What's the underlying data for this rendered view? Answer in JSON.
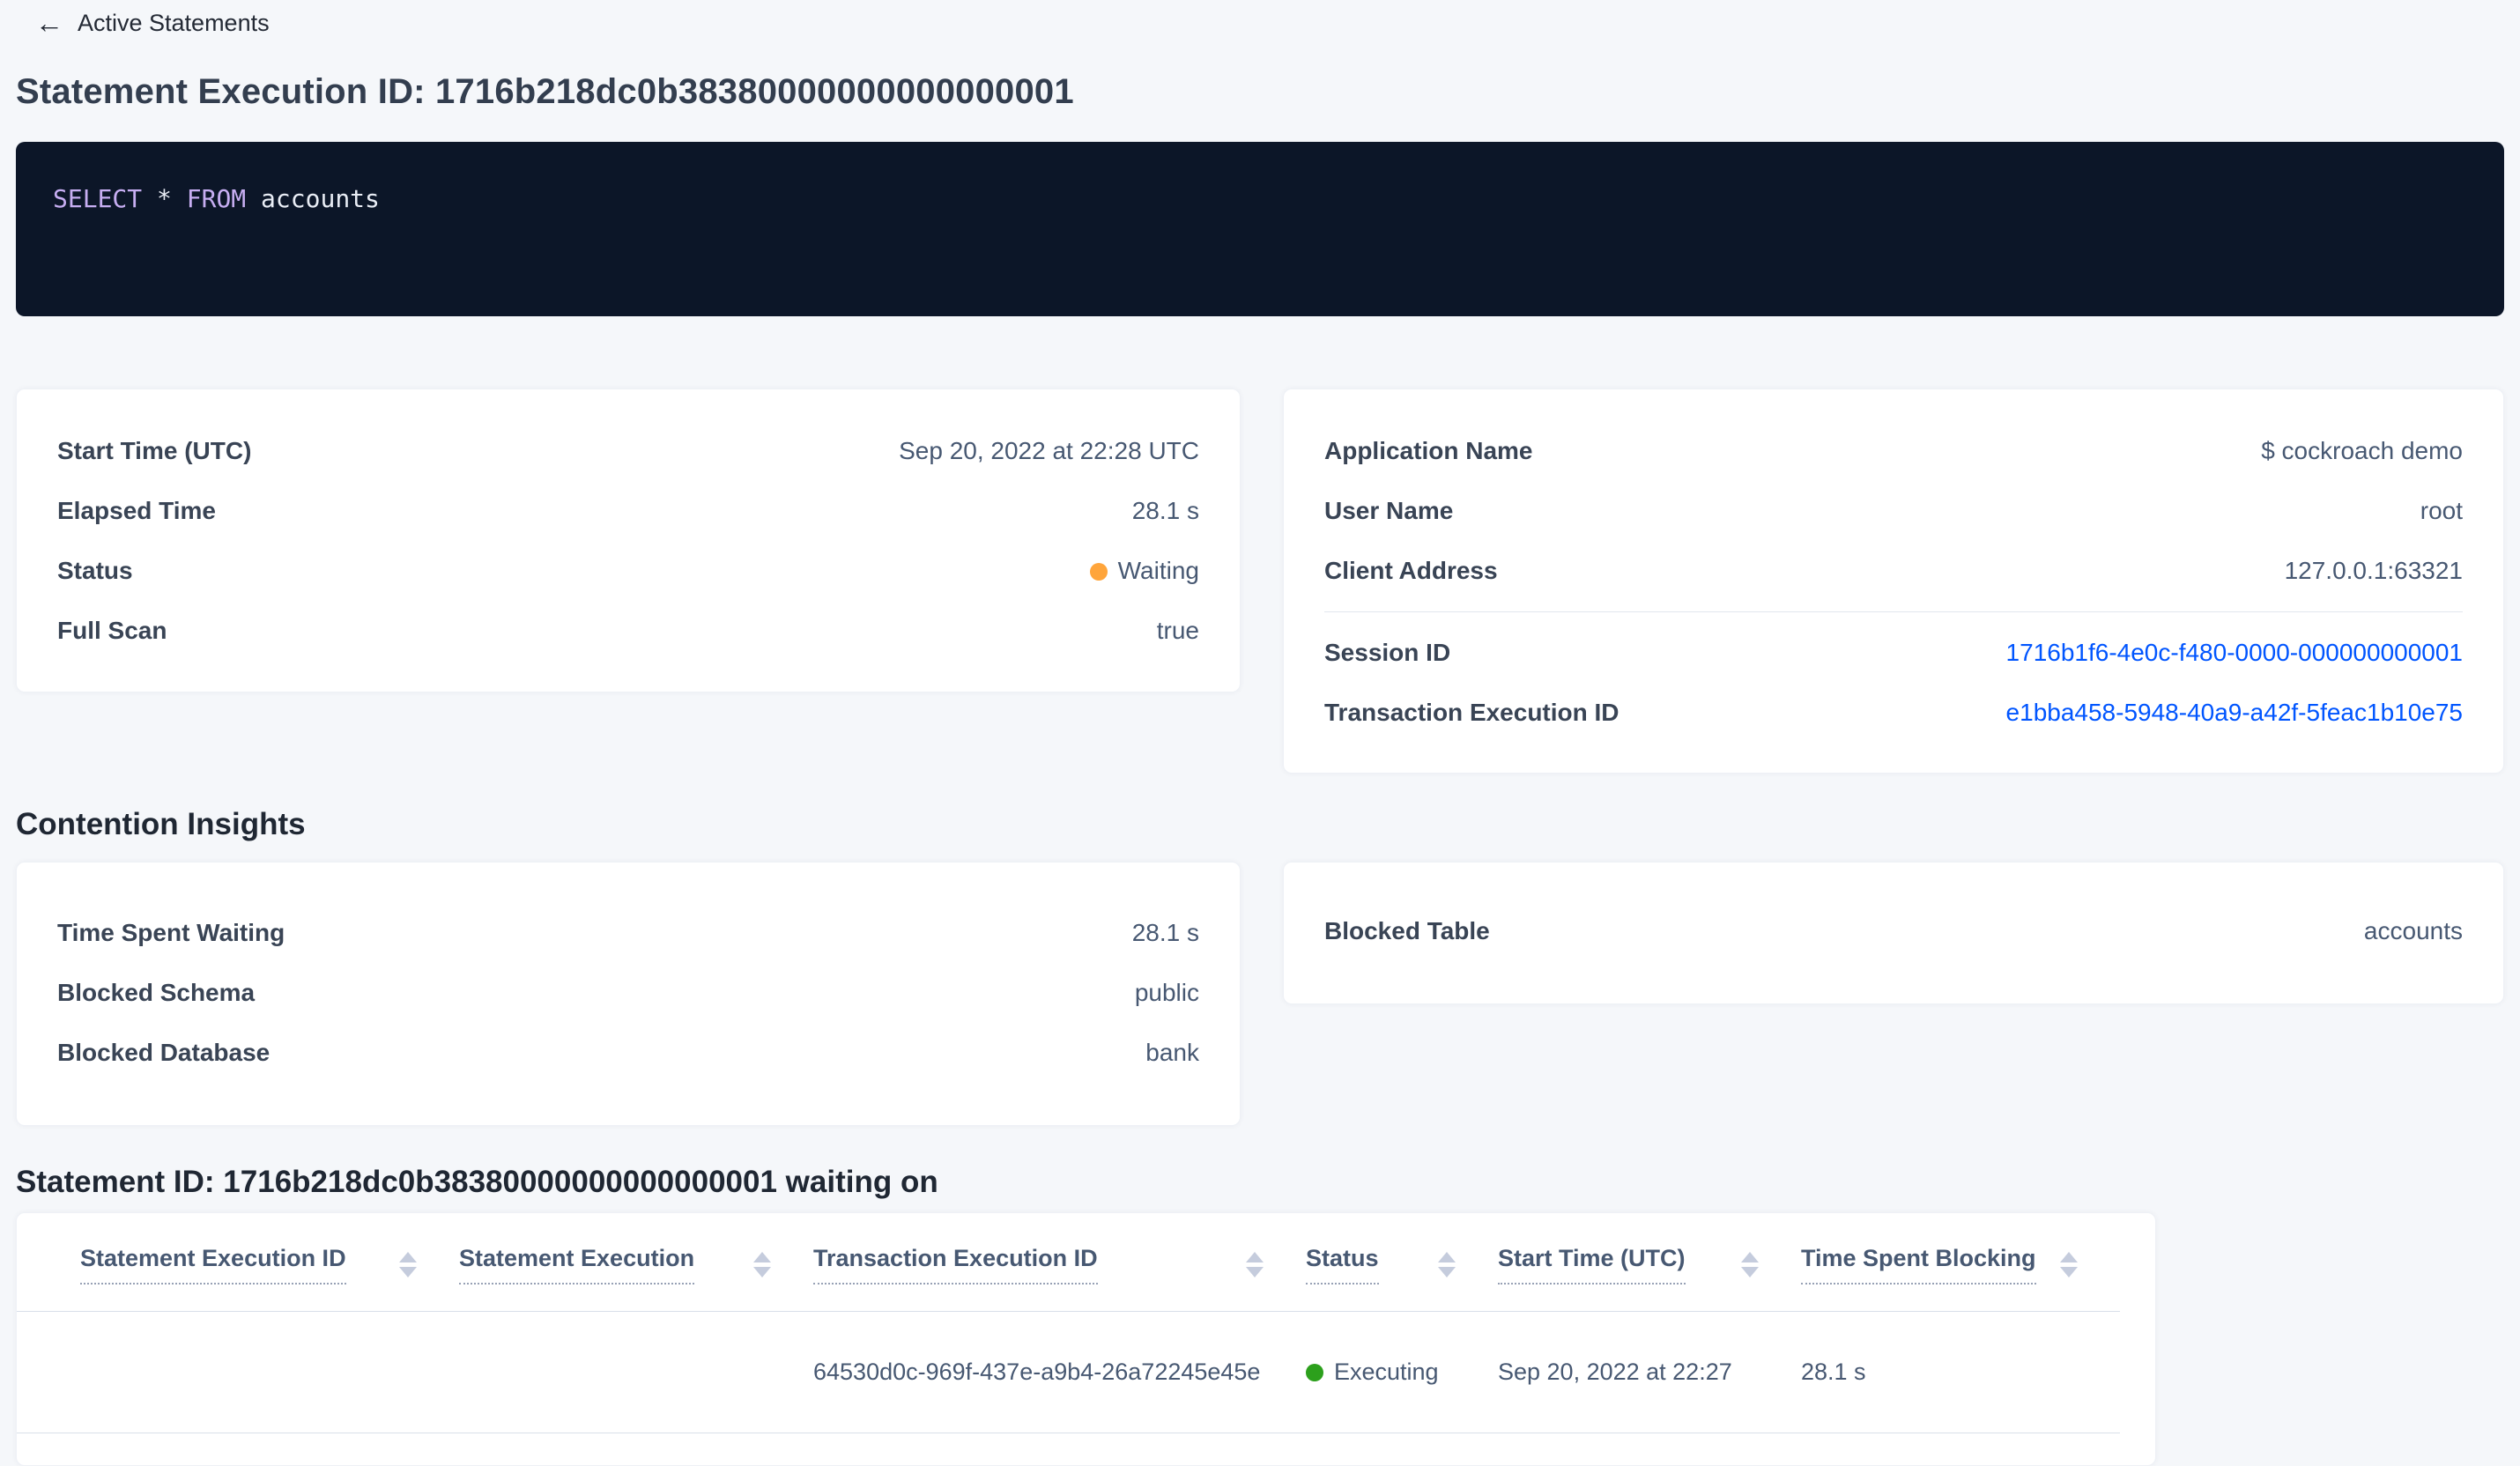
{
  "colors": {
    "link_blue": "#0055ff",
    "status_waiting_dot": "#ffa53b",
    "status_executing_dot": "#2ca01c",
    "sql_keyword": "#c7aef2",
    "sql_plain": "#e9edf5",
    "sql_background": "#0c1628",
    "page_background": "#f5f7fa"
  },
  "header": {
    "back_label": "Active Statements",
    "back_arrow": "←",
    "title": "Statement Execution ID: 1716b218dc0b38380000000000000001"
  },
  "sql": {
    "parts": [
      {
        "text": "SELECT",
        "type": "keyword"
      },
      {
        "text": " * ",
        "type": "plain"
      },
      {
        "text": "FROM",
        "type": "keyword"
      },
      {
        "text": " accounts",
        "type": "plain"
      }
    ]
  },
  "overview_card": {
    "rows": [
      {
        "label": "Start Time (UTC)",
        "value": "Sep 20, 2022 at 22:28 UTC"
      },
      {
        "label": "Elapsed Time",
        "value": "28.1 s"
      },
      {
        "label": "Status",
        "value": "Waiting",
        "dot_color": "#ffa53b"
      },
      {
        "label": "Full Scan",
        "value": "true"
      }
    ]
  },
  "session_card": {
    "rows": [
      {
        "label": "Application Name",
        "value": "$ cockroach demo"
      },
      {
        "label": "User Name",
        "value": "root"
      },
      {
        "label": "Client Address",
        "value": "127.0.0.1:63321"
      }
    ],
    "link_rows": [
      {
        "label": "Session ID",
        "value": "1716b1f6-4e0c-f480-0000-000000000001"
      },
      {
        "label": "Transaction Execution ID",
        "value": "e1bba458-5948-40a9-a42f-5feac1b10e75"
      }
    ]
  },
  "contention": {
    "heading": "Contention Insights",
    "waiting_card": {
      "rows": [
        {
          "label": "Time Spent Waiting",
          "value": "28.1 s"
        },
        {
          "label": "Blocked Schema",
          "value": "public"
        },
        {
          "label": "Blocked Database",
          "value": "bank"
        }
      ]
    },
    "blocked_table_card": {
      "rows": [
        {
          "label": "Blocked Table",
          "value": "accounts"
        }
      ]
    }
  },
  "waiting_on": {
    "heading": "Statement ID: 1716b218dc0b38380000000000000001 waiting on",
    "table": {
      "columns": [
        "Statement Execution ID",
        "Statement Execution",
        "Transaction Execution ID",
        "Status",
        "Start Time (UTC)",
        "Time Spent Blocking"
      ],
      "rows": [
        {
          "statement_execution_id": "",
          "statement_execution": "",
          "transaction_execution_id": "64530d0c-969f-437e-a9b4-26a72245e45e",
          "status": "Executing",
          "status_dot_color": "#2ca01c",
          "start_time": "Sep 20, 2022 at 22:27",
          "time_spent_blocking": "28.1 s"
        }
      ]
    }
  }
}
